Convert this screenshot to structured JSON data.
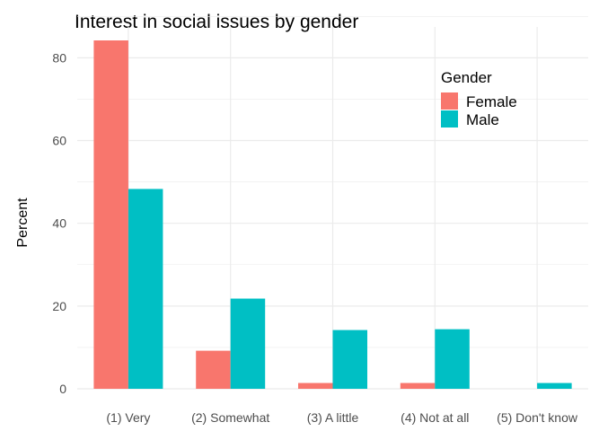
{
  "chart_data": {
    "type": "bar",
    "title": "Interest in social issues by gender",
    "xlabel": "",
    "ylabel": "Percent",
    "categories": [
      "(1) Very",
      "(2) Somewhat",
      "(3) A little",
      "(4) Not at all",
      "(5) Don't know"
    ],
    "series": [
      {
        "name": "Female",
        "color": "#F8766D",
        "values": [
          84.2,
          9.2,
          1.4,
          1.4,
          0
        ]
      },
      {
        "name": "Male",
        "color": "#00BFC4",
        "values": [
          48.3,
          21.8,
          14.2,
          14.4,
          1.4
        ]
      }
    ],
    "y_ticks": [
      0,
      20,
      40,
      60,
      80
    ],
    "ylim": [
      0,
      84.2
    ],
    "legend_title": "Gender",
    "legend_position": "top-right",
    "grid": true,
    "background": "#ffffff",
    "grid_color": "#ebebeb"
  }
}
